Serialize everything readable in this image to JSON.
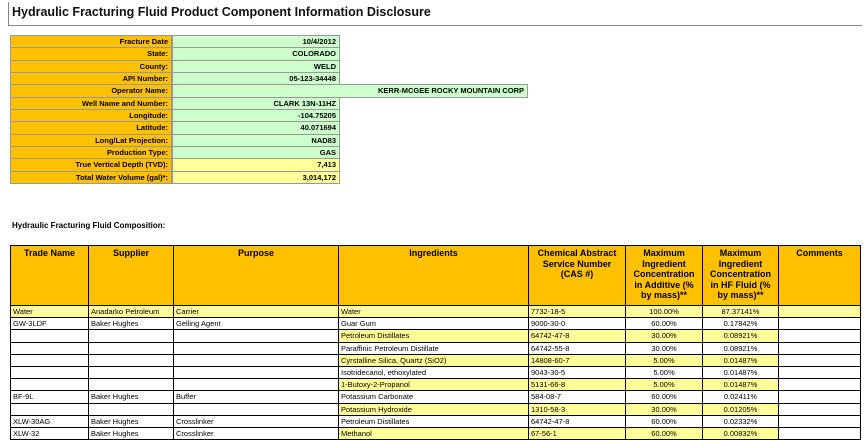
{
  "title": "Hydraulic Fracturing Fluid Product Component Information Disclosure",
  "info": [
    {
      "label": "Fracture Date",
      "value": "10/4/2012"
    },
    {
      "label": "State:",
      "value": "COLORADO"
    },
    {
      "label": "County:",
      "value": "WELD"
    },
    {
      "label": "API Number:",
      "value": "05-123-34448"
    },
    {
      "label": "Operator Name:",
      "value": "KERR-MCGEE ROCKY MOUNTAIN CORP"
    },
    {
      "label": "Well Name and Number:",
      "value": "CLARK 13N-11HZ"
    },
    {
      "label": "Longitude:",
      "value": "-104.75205"
    },
    {
      "label": "Latitude:",
      "value": "40.071694"
    },
    {
      "label": "Long/Lat Projection:",
      "value": "NAD83"
    },
    {
      "label": "Production Type:",
      "value": "GAS"
    },
    {
      "label": "True Vertical Depth (TVD):",
      "value": "7,413"
    },
    {
      "label": "Total Water Volume (gal)*:",
      "value": "3,014,172"
    }
  ],
  "composition_caption": "Hydraulic Fracturing Fluid Composition:",
  "table": {
    "headers": [
      "Trade Name",
      "Supplier",
      "Purpose",
      "Ingredients",
      "Chemical Abstract Service Number (CAS #)",
      "Maximum Ingredient Concentration in Additive (% by mass)**",
      "Maximum Ingredient Concentration in HF Fluid (% by mass)**",
      "Comments"
    ],
    "rows": [
      {
        "trade_name": "Water",
        "supplier": "Anadarko Petroleum",
        "purpose": "Carrier",
        "ingredient": "Water",
        "cas": "7732-18-5",
        "additive_pct": "100.00%",
        "hf_pct": "87.37141%"
      },
      {
        "trade_name": "GW-3LDF",
        "supplier": "Baker Hughes",
        "purpose": "Gelling Agent",
        "ingredient": "Guar Gum",
        "cas": "9000-30-0",
        "additive_pct": "60.00%",
        "hf_pct": "0.17842%"
      },
      {
        "ingredient": "Petroleum Distillates",
        "cas": "64742-47-8",
        "additive_pct": "30.00%",
        "hf_pct": "0.08921%"
      },
      {
        "ingredient": "Paraffinic Petroleum Distillate",
        "cas": "64742-55-8",
        "additive_pct": "30.00%",
        "hf_pct": "0.08921%"
      },
      {
        "ingredient": "Cyrstalline Silica, Quartz (SiO2)",
        "cas": "14808-60-7",
        "additive_pct": "5.00%",
        "hf_pct": "0.01487%"
      },
      {
        "ingredient": "Isotridecanol, ethoxylated",
        "cas": "9043-30-5",
        "additive_pct": "5.00%",
        "hf_pct": "0.01487%"
      },
      {
        "ingredient": "1-Butoxy-2-Propanol",
        "cas": "5131-66-8",
        "additive_pct": "5.00%",
        "hf_pct": "0.01487%"
      },
      {
        "trade_name": "BF-9L",
        "supplier": "Baker Hughes",
        "purpose": "Buffer",
        "ingredient": "Potassium Carbonate",
        "cas": "584-08-7",
        "additive_pct": "60.00%",
        "hf_pct": "0.02411%"
      },
      {
        "ingredient": "Potassium Hydroxide",
        "cas": "1310-58-3",
        "additive_pct": "30.00%",
        "hf_pct": "0.01205%"
      },
      {
        "trade_name": "XLW-30AG",
        "supplier": "Baker Hughes",
        "purpose": "Crosslinker",
        "ingredient": "Petroleum Distillates",
        "cas": "64742-47-8",
        "additive_pct": "60.00%",
        "hf_pct": "0.02332%"
      },
      {
        "trade_name": "XLW-32",
        "supplier": "Baker Hughes",
        "purpose": "Crosslinker",
        "ingredient": "Methanol",
        "cas": "67-56-1",
        "additive_pct": "60.00%",
        "hf_pct": "0.00832%"
      }
    ]
  }
}
